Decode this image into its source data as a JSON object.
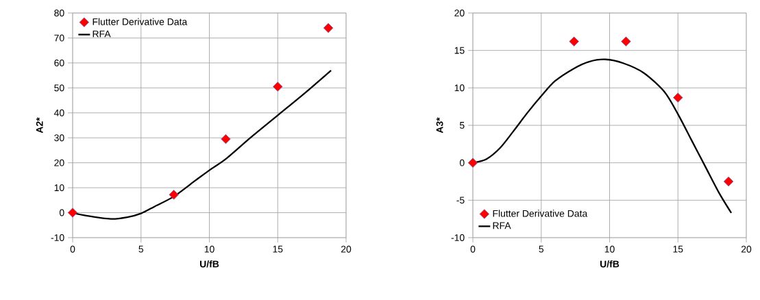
{
  "chart_data": [
    {
      "type": "scatter",
      "xlabel": "U/fB",
      "ylabel": "A2*",
      "xlim": [
        0,
        20
      ],
      "ylim": [
        -10,
        80
      ],
      "xticks": [
        0,
        5,
        10,
        15,
        20
      ],
      "yticks": [
        -10,
        0,
        10,
        20,
        30,
        40,
        50,
        60,
        70,
        80
      ],
      "grid": true,
      "legend": "top left",
      "series": [
        {
          "name": "Flutter Derivative Data",
          "marker": "diamond",
          "color": "#ff0000",
          "x": [
            0,
            7.4,
            11.2,
            15,
            18.7
          ],
          "values": [
            0,
            7.2,
            29.5,
            50.5,
            74
          ]
        },
        {
          "name": "RFA",
          "type": "line",
          "marker": "none",
          "line_style": "solid",
          "color": "#000000",
          "x": [
            0,
            1,
            2.8,
            4,
            5,
            6,
            7.4,
            9,
            10,
            11.2,
            13,
            15,
            17,
            18.9
          ],
          "values": [
            0,
            -1.2,
            -2.5,
            -1.8,
            -0.3,
            2.5,
            6.5,
            13,
            17,
            21.5,
            30,
            39,
            48,
            57
          ]
        }
      ]
    },
    {
      "type": "scatter",
      "xlabel": "U/fB",
      "ylabel": "A3*",
      "xlim": [
        0,
        20
      ],
      "ylim": [
        -10,
        20
      ],
      "xticks": [
        0,
        5,
        10,
        15,
        20
      ],
      "yticks": [
        -10,
        -5,
        0,
        5,
        10,
        15,
        20
      ],
      "grid": true,
      "legend": "bottom left",
      "series": [
        {
          "name": "Flutter Derivative Data",
          "marker": "diamond",
          "color": "#ff0000",
          "x": [
            0,
            7.4,
            11.2,
            15,
            18.7
          ],
          "values": [
            0,
            16.2,
            16.2,
            8.7,
            -2.5
          ]
        },
        {
          "name": "RFA",
          "type": "line",
          "marker": "none",
          "line_style": "solid",
          "color": "#000000",
          "x": [
            0,
            1,
            2,
            3,
            4,
            5,
            6,
            7.4,
            8.5,
            9.7,
            11,
            12.5,
            14,
            15,
            16,
            17,
            18,
            18.9
          ],
          "values": [
            0,
            0.5,
            2,
            4.3,
            6.7,
            8.9,
            10.9,
            12.6,
            13.5,
            13.8,
            13.3,
            12,
            9.5,
            6.5,
            3,
            -0.5,
            -4,
            -6.7
          ]
        }
      ]
    }
  ]
}
